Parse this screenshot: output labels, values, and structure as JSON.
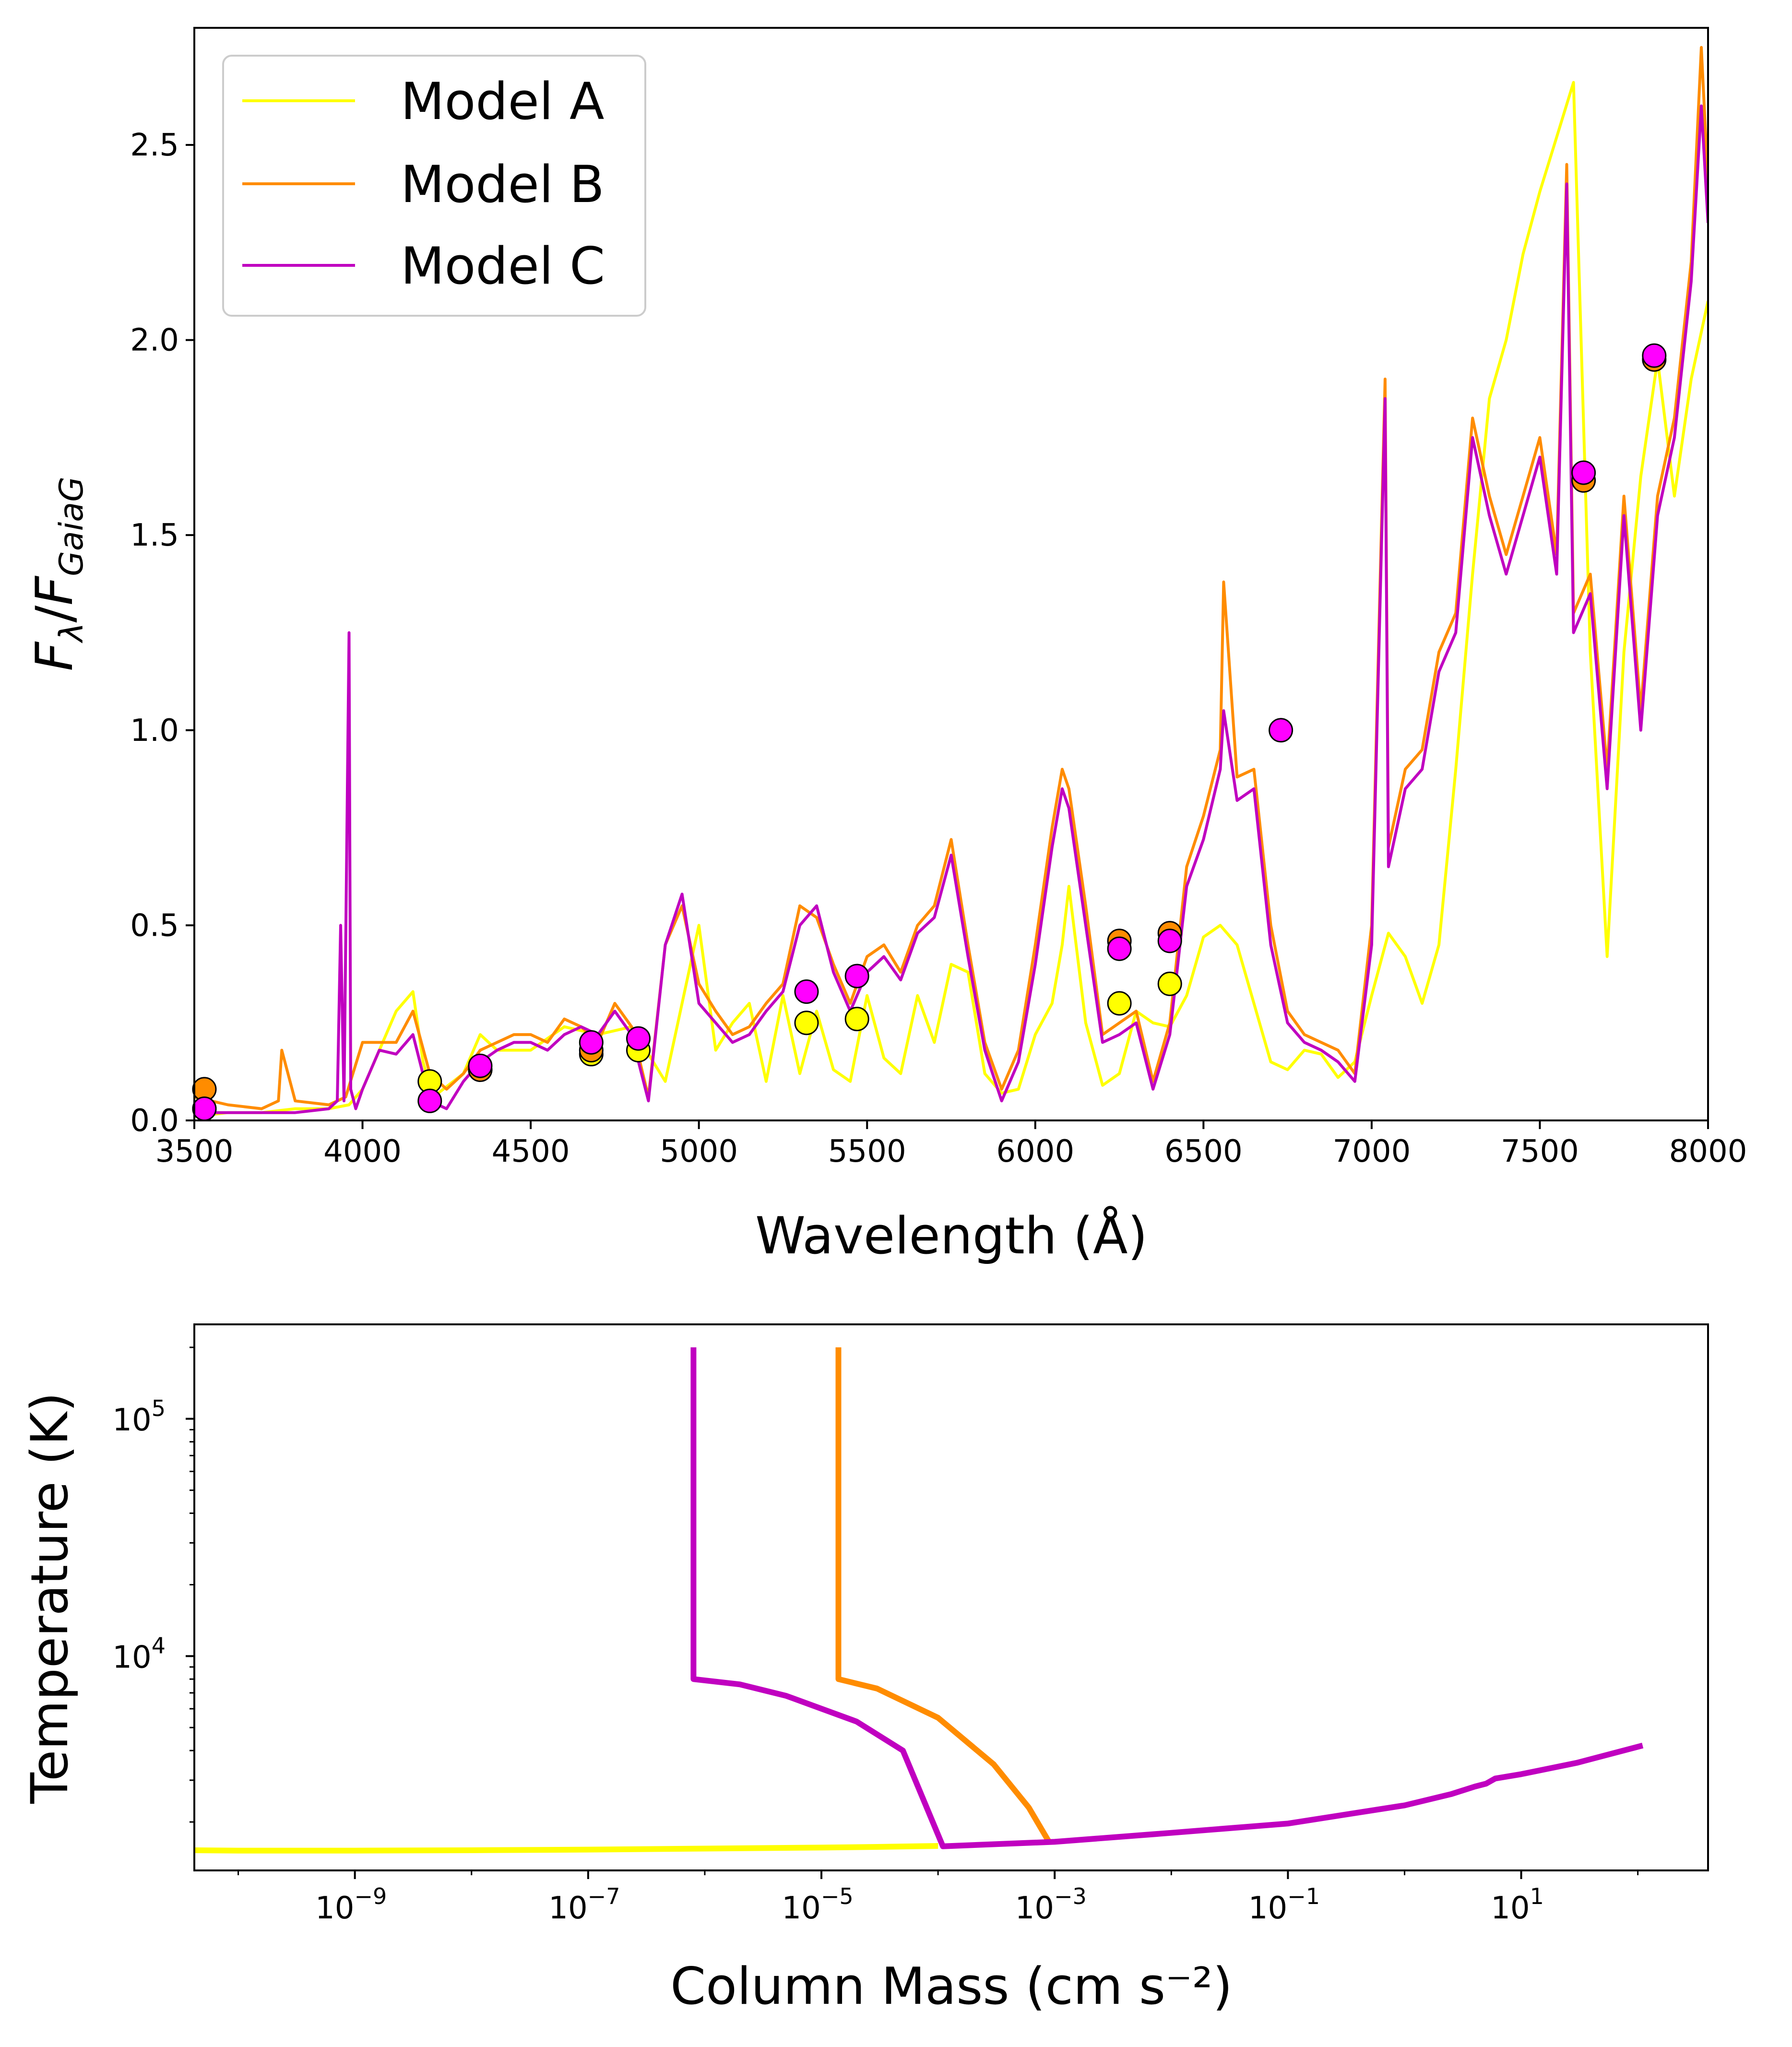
{
  "colors": {
    "model_a": "#ffff00",
    "model_b": "#ff8c00",
    "model_c": "#c000c0",
    "photometry_c_fill": "#ff00ff",
    "axes": "#000000"
  },
  "chart_data": [
    {
      "type": "line",
      "panel": "top",
      "xlabel": "Wavelength (Å)",
      "ylabel": "F_λ/F_GaiaG",
      "xlim": [
        3500,
        8000
      ],
      "ylim": [
        0,
        2.8
      ],
      "xticks": [
        "3500",
        "4000",
        "4500",
        "5000",
        "5500",
        "6000",
        "6500",
        "7000",
        "7500",
        "8000"
      ],
      "yticks": [
        "0.0",
        "0.5",
        "1.0",
        "1.5",
        "2.0",
        "2.5"
      ],
      "legend": {
        "placement": "upper-left",
        "entries": [
          "Model A",
          "Model B",
          "Model C"
        ]
      },
      "grid": false,
      "series": [
        {
          "name": "Model A",
          "color": "#ffff00",
          "x": [
            3500,
            3600,
            3700,
            3800,
            3900,
            3960,
            4000,
            4100,
            4150,
            4180,
            4210,
            4300,
            4350,
            4400,
            4500,
            4600,
            4700,
            4800,
            4900,
            4950,
            5000,
            5050,
            5100,
            5150,
            5200,
            5250,
            5300,
            5350,
            5400,
            5450,
            5500,
            5550,
            5600,
            5650,
            5700,
            5750,
            5800,
            5850,
            5900,
            5950,
            6000,
            6050,
            6080,
            6100,
            6150,
            6200,
            6250,
            6300,
            6350,
            6400,
            6450,
            6500,
            6550,
            6600,
            6650,
            6700,
            6750,
            6800,
            6850,
            6900,
            6950,
            7000,
            7050,
            7100,
            7150,
            7200,
            7250,
            7300,
            7350,
            7400,
            7450,
            7500,
            7550,
            7600,
            7650,
            7700,
            7750,
            7800,
            7850,
            7900,
            7950,
            8000
          ],
          "y": [
            0.01,
            0.02,
            0.02,
            0.03,
            0.03,
            0.04,
            0.08,
            0.28,
            0.33,
            0.15,
            0.06,
            0.12,
            0.22,
            0.18,
            0.18,
            0.24,
            0.22,
            0.24,
            0.1,
            0.3,
            0.5,
            0.18,
            0.25,
            0.3,
            0.1,
            0.32,
            0.12,
            0.28,
            0.13,
            0.1,
            0.32,
            0.16,
            0.12,
            0.32,
            0.2,
            0.4,
            0.38,
            0.12,
            0.07,
            0.08,
            0.22,
            0.3,
            0.45,
            0.6,
            0.25,
            0.09,
            0.12,
            0.28,
            0.25,
            0.24,
            0.32,
            0.47,
            0.5,
            0.45,
            0.3,
            0.15,
            0.13,
            0.18,
            0.17,
            0.11,
            0.15,
            0.32,
            0.48,
            0.42,
            0.3,
            0.45,
            0.9,
            1.4,
            1.85,
            2.0,
            2.22,
            2.38,
            2.52,
            2.66,
            1.2,
            0.42,
            1.2,
            1.65,
            1.95,
            1.6,
            1.9,
            2.1
          ]
        },
        {
          "name": "Model B",
          "color": "#ff8c00",
          "x": [
            3500,
            3600,
            3700,
            3750,
            3760,
            3800,
            3900,
            3950,
            4000,
            4100,
            4150,
            4200,
            4250,
            4300,
            4350,
            4400,
            4450,
            4500,
            4550,
            4600,
            4650,
            4700,
            4750,
            4800,
            4850,
            4900,
            4950,
            5000,
            5050,
            5100,
            5150,
            5200,
            5250,
            5300,
            5350,
            5400,
            5450,
            5500,
            5550,
            5600,
            5650,
            5700,
            5750,
            5800,
            5850,
            5900,
            5950,
            6000,
            6050,
            6080,
            6100,
            6150,
            6200,
            6250,
            6300,
            6350,
            6400,
            6450,
            6500,
            6550,
            6560,
            6600,
            6650,
            6700,
            6750,
            6800,
            6850,
            6900,
            6950,
            7000,
            7040,
            7050,
            7100,
            7150,
            7200,
            7250,
            7300,
            7350,
            7400,
            7450,
            7500,
            7550,
            7580,
            7600,
            7650,
            7700,
            7750,
            7800,
            7850,
            7900,
            7950,
            7980,
            8000
          ],
          "y": [
            0.06,
            0.04,
            0.03,
            0.05,
            0.18,
            0.05,
            0.04,
            0.06,
            0.2,
            0.2,
            0.28,
            0.12,
            0.08,
            0.12,
            0.18,
            0.2,
            0.22,
            0.22,
            0.2,
            0.26,
            0.24,
            0.2,
            0.3,
            0.24,
            0.06,
            0.45,
            0.55,
            0.35,
            0.28,
            0.22,
            0.24,
            0.3,
            0.35,
            0.55,
            0.52,
            0.4,
            0.3,
            0.42,
            0.45,
            0.38,
            0.5,
            0.55,
            0.72,
            0.45,
            0.2,
            0.08,
            0.18,
            0.45,
            0.75,
            0.9,
            0.85,
            0.55,
            0.22,
            0.25,
            0.28,
            0.1,
            0.25,
            0.65,
            0.78,
            0.95,
            1.38,
            0.88,
            0.9,
            0.5,
            0.28,
            0.22,
            0.2,
            0.18,
            0.12,
            0.5,
            1.9,
            0.7,
            0.9,
            0.95,
            1.2,
            1.3,
            1.8,
            1.6,
            1.45,
            1.6,
            1.75,
            1.45,
            2.45,
            1.3,
            1.4,
            0.9,
            1.6,
            1.05,
            1.6,
            1.8,
            2.2,
            2.75,
            2.4
          ]
        },
        {
          "name": "Model C",
          "color": "#c000c0",
          "x": [
            3500,
            3600,
            3700,
            3800,
            3900,
            3925,
            3935,
            3945,
            3960,
            3965,
            3980,
            4000,
            4050,
            4100,
            4150,
            4200,
            4250,
            4300,
            4350,
            4400,
            4450,
            4500,
            4550,
            4600,
            4650,
            4700,
            4750,
            4800,
            4850,
            4900,
            4950,
            5000,
            5050,
            5100,
            5150,
            5200,
            5250,
            5300,
            5350,
            5400,
            5450,
            5500,
            5550,
            5600,
            5650,
            5700,
            5750,
            5800,
            5850,
            5900,
            5950,
            6000,
            6050,
            6080,
            6100,
            6150,
            6200,
            6250,
            6300,
            6350,
            6400,
            6450,
            6500,
            6550,
            6560,
            6600,
            6650,
            6700,
            6750,
            6800,
            6850,
            6900,
            6950,
            7000,
            7040,
            7050,
            7100,
            7150,
            7200,
            7250,
            7300,
            7350,
            7400,
            7450,
            7500,
            7550,
            7580,
            7600,
            7650,
            7700,
            7750,
            7800,
            7850,
            7900,
            7950,
            7980,
            8000
          ],
          "y": [
            0.02,
            0.02,
            0.02,
            0.02,
            0.03,
            0.05,
            0.5,
            0.05,
            1.25,
            0.08,
            0.03,
            0.08,
            0.18,
            0.17,
            0.22,
            0.05,
            0.03,
            0.1,
            0.15,
            0.18,
            0.2,
            0.2,
            0.18,
            0.22,
            0.24,
            0.22,
            0.28,
            0.22,
            0.05,
            0.45,
            0.58,
            0.3,
            0.25,
            0.2,
            0.22,
            0.28,
            0.33,
            0.5,
            0.55,
            0.38,
            0.28,
            0.38,
            0.42,
            0.36,
            0.48,
            0.52,
            0.68,
            0.42,
            0.18,
            0.05,
            0.15,
            0.4,
            0.7,
            0.85,
            0.8,
            0.5,
            0.2,
            0.22,
            0.25,
            0.08,
            0.22,
            0.6,
            0.72,
            0.9,
            1.05,
            0.82,
            0.85,
            0.45,
            0.25,
            0.2,
            0.18,
            0.15,
            0.1,
            0.45,
            1.85,
            0.65,
            0.85,
            0.9,
            1.15,
            1.25,
            1.75,
            1.55,
            1.4,
            1.55,
            1.7,
            1.4,
            2.4,
            1.25,
            1.35,
            0.85,
            1.55,
            1.0,
            1.55,
            1.75,
            2.15,
            2.6,
            2.3
          ]
        },
        {
          "name": "Model A",
          "mark": "scatter",
          "x": [
            3530,
            4200,
            4350,
            4680,
            4820,
            5320,
            5470,
            6250,
            6400
          ],
          "y": [
            0.03,
            0.1,
            0.13,
            0.17,
            0.18,
            0.25,
            0.26,
            0.3,
            0.35
          ]
        },
        {
          "name": "Model B",
          "mark": "scatter",
          "x": [
            3530,
            4350,
            4680,
            6250,
            6400,
            7630,
            7840
          ],
          "y": [
            0.08,
            0.13,
            0.18,
            0.46,
            0.48,
            1.64,
            1.95
          ]
        },
        {
          "name": "Model C",
          "mark": "scatter",
          "x": [
            3530,
            4200,
            4350,
            4680,
            4820,
            5320,
            5470,
            6250,
            6400,
            6730,
            7630,
            7840
          ],
          "y": [
            0.03,
            0.05,
            0.14,
            0.2,
            0.21,
            0.33,
            0.37,
            0.44,
            0.46,
            1.0,
            1.66,
            1.96
          ]
        }
      ]
    },
    {
      "type": "line",
      "panel": "bottom",
      "xlabel": "Column Mass (cm s⁻²)",
      "ylabel": "Temperature (K)",
      "xscale": "log",
      "yscale": "log",
      "xlim": [
        4.2e-11,
        400
      ],
      "ylim": [
        1250,
        250000
      ],
      "xticks": [
        {
          "base": "10",
          "exp": "−9"
        },
        {
          "base": "10",
          "exp": "−7"
        },
        {
          "base": "10",
          "exp": "−5"
        },
        {
          "base": "10",
          "exp": "−3"
        },
        {
          "base": "10",
          "exp": "−1"
        },
        {
          "base": "10",
          "exp": "1"
        }
      ],
      "yticks": [
        {
          "base": "10",
          "exp": "4"
        },
        {
          "base": "10",
          "exp": "5"
        }
      ],
      "grid": false,
      "series": [
        {
          "name": "Model A",
          "color": "#ffff00",
          "x": [
            4.2e-11,
            1e-10,
            1e-09,
            1e-08,
            1e-07,
            1e-06,
            1e-05,
            3e-05,
            0.0001
          ],
          "y": [
            1520,
            1515,
            1515,
            1520,
            1530,
            1545,
            1560,
            1570,
            1585
          ]
        },
        {
          "name": "Model B",
          "color": "#ff8c00",
          "x": [
            1.4e-05,
            1.4e-05,
            1.4e-05,
            3e-05,
            0.0001,
            0.0003,
            0.0006,
            0.0009
          ],
          "y": [
            200000,
            10000,
            8000,
            7300,
            5500,
            3500,
            2300,
            1640
          ]
        },
        {
          "name": "Model C",
          "color": "#c000c0",
          "x": [
            8e-07,
            8e-07,
            8e-07,
            2e-06,
            5e-06,
            2e-05,
            5e-05,
            0.00011,
            0.001,
            0.01,
            0.1,
            1,
            2.5,
            4,
            5,
            6,
            10,
            30,
            110
          ],
          "y": [
            200000,
            10000,
            8000,
            7600,
            6800,
            5300,
            4000,
            1580,
            1650,
            1800,
            1970,
            2350,
            2620,
            2820,
            2900,
            3050,
            3180,
            3550,
            4200
          ]
        }
      ]
    }
  ]
}
